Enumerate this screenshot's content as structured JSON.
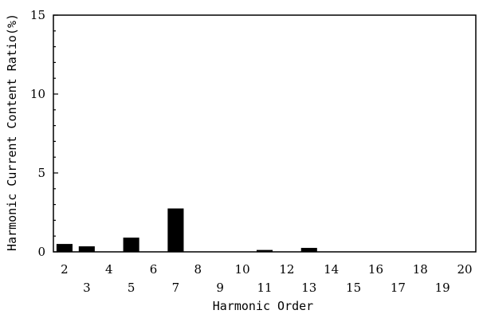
{
  "chart_data": {
    "type": "bar",
    "xlabel": "Harmonic Order",
    "ylabel": "Harmonic Current Content Ratio(%)",
    "ylim": [
      0,
      15
    ],
    "yticks": [
      "0",
      "5",
      "10",
      "15"
    ],
    "categories": [
      "2",
      "3",
      "4",
      "5",
      "6",
      "7",
      "8",
      "9",
      "10",
      "11",
      "12",
      "13",
      "14",
      "15",
      "16",
      "17",
      "18",
      "19",
      "20"
    ],
    "values": [
      0.5,
      0.35,
      0.0,
      0.9,
      0.0,
      2.75,
      0.0,
      0.0,
      0.0,
      0.12,
      0.0,
      0.25,
      0.0,
      0.0,
      0.0,
      0.0,
      0.0,
      0.0,
      0.0
    ],
    "bar_color": "#000000",
    "grid": false
  }
}
